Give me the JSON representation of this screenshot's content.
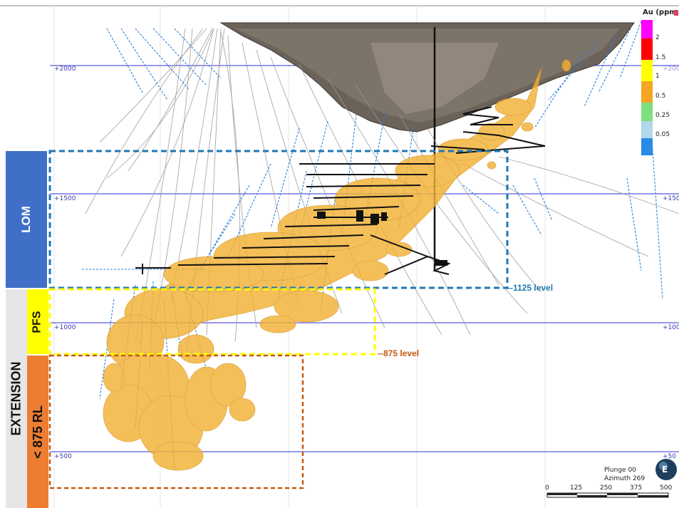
{
  "zones": {
    "lom": {
      "label": "LOM",
      "color": "#3f6fc6"
    },
    "pfs": {
      "label": "PFS",
      "color": "#ffff00"
    },
    "extension": {
      "label": "EXTENSION",
      "color": "#e6e6e6"
    },
    "below875": {
      "label": "< 875 RL",
      "color": "#ed7d31"
    }
  },
  "rl_labels": {
    "l2000": "+2000",
    "l1500": "+1500",
    "l1000": "+1000",
    "l500": "+500",
    "r2000": "+200",
    "r1500": "+150",
    "r1000": "+100",
    "r500": "+50"
  },
  "levels": {
    "l1125": {
      "label": "--1125 level",
      "color": "#1f77b4"
    },
    "l875": {
      "label": "--875 level",
      "color": "#c55a11"
    }
  },
  "legend": {
    "title": "Au (ppm",
    "ticks": [
      "2",
      "1.5",
      "1",
      "0.5",
      "0.25",
      "0.05"
    ],
    "colors": [
      "#ff00ff",
      "#ff0000",
      "#ffff00",
      "#f5a623",
      "#7ddf7d",
      "#b0d8ea",
      "#2a8be6"
    ]
  },
  "orientation": {
    "plunge": "Plunge 00",
    "azimuth": "Azimuth 269",
    "compass": "E"
  },
  "scale": {
    "ticks": [
      "0",
      "125",
      "250",
      "375",
      "500"
    ]
  }
}
